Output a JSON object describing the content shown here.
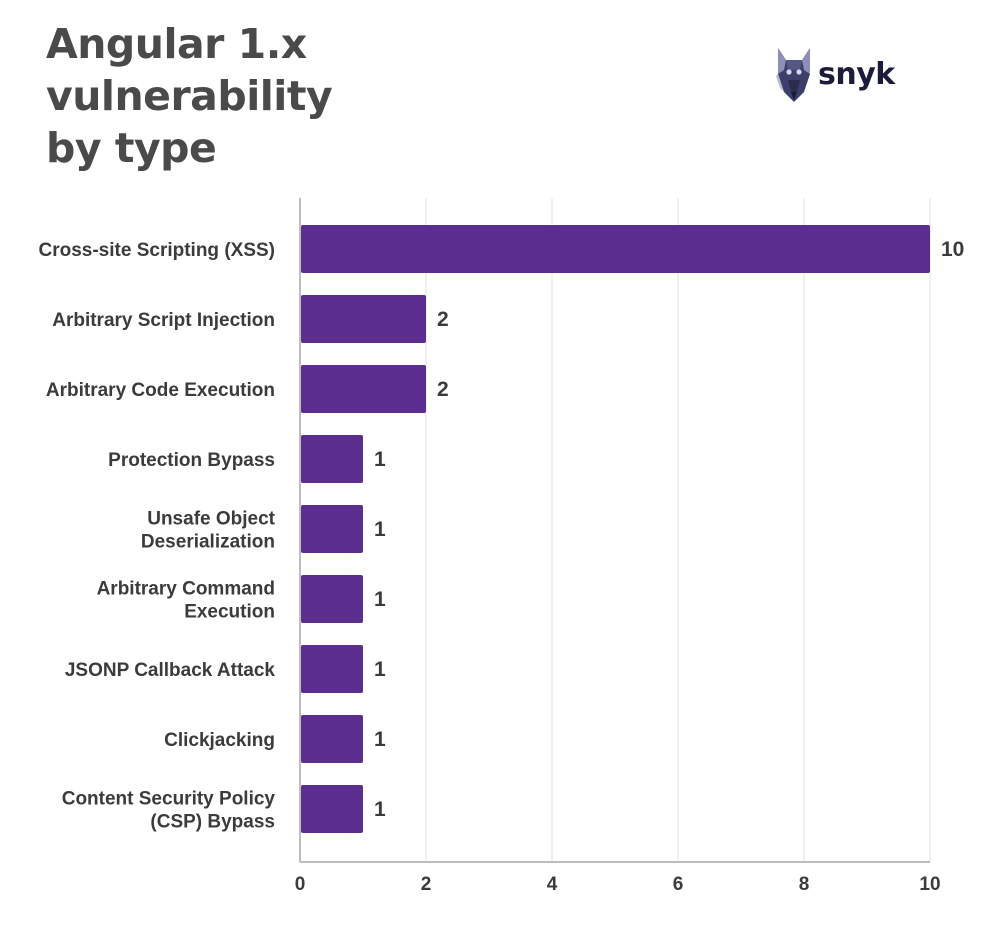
{
  "title_lines": [
    "Angular 1.x vulnerability",
    "by type"
  ],
  "logo": {
    "text": "snyk",
    "icon": "snyk-dog-logo-icon"
  },
  "colors": {
    "bar": "#5b2d8e",
    "text": "#3b3b3b",
    "title": "#4a4a4a",
    "grid": "#ececec",
    "axis": "#bdbdbd"
  },
  "chart_data": {
    "type": "bar",
    "orientation": "horizontal",
    "title": "Angular 1.x vulnerability by type",
    "categories": [
      "Cross-site Scripting (XSS)",
      "Arbitrary Script Injection",
      "Arbitrary Code Execution",
      "Protection Bypass",
      "Unsafe Object Deserialization",
      "Arbitrary Command Execution",
      "JSONP Callback Attack",
      "Clickjacking",
      "Content Security Policy (CSP) Bypass"
    ],
    "category_lines": [
      [
        "Cross-site Scripting (XSS)"
      ],
      [
        "Arbitrary Script Injection"
      ],
      [
        "Arbitrary Code Execution"
      ],
      [
        "Protection Bypass"
      ],
      [
        "Unsafe Object",
        "Deserialization"
      ],
      [
        "Arbitrary Command",
        "Execution"
      ],
      [
        "JSONP Callback Attack"
      ],
      [
        "Clickjacking"
      ],
      [
        "Content Security Policy",
        "(CSP) Bypass"
      ]
    ],
    "values": [
      10,
      2,
      2,
      1,
      1,
      1,
      1,
      1,
      1
    ],
    "data_labels": [
      "10",
      "2",
      "2",
      "1",
      "1",
      "1",
      "1",
      "1",
      "1"
    ],
    "xlim": [
      0,
      10
    ],
    "xticks": [
      0,
      2,
      4,
      6,
      8,
      10
    ],
    "xtick_labels": [
      "0",
      "2",
      "4",
      "6",
      "8",
      "10"
    ],
    "grid": true,
    "legend": "none",
    "xlabel": "",
    "ylabel": ""
  }
}
